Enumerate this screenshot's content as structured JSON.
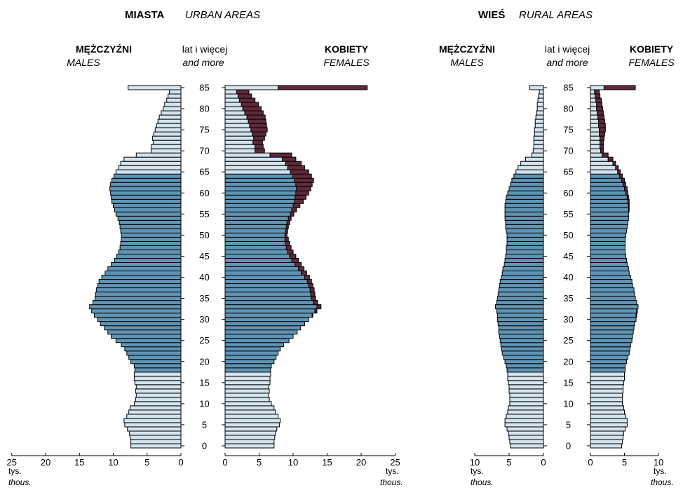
{
  "colors": {
    "working_age": "#5f94b4",
    "non_working_age": "#d3e4ef",
    "female_surplus": "#5e2a3a",
    "outline": "#000000"
  },
  "urban": {
    "title_pl": "MIASTA",
    "title_en": "URBAN AREAS",
    "males_pl": "MĘŻCZYŹNI",
    "males_en": "MALES",
    "age_pl": "lat i więcej",
    "age_en": "and more",
    "females_pl": "KOBIETY",
    "females_en": "FEMALES",
    "unit_pl": "tys.",
    "unit_en": "thous."
  },
  "rural": {
    "title_pl": "WIEŚ",
    "title_en": "RURAL AREAS",
    "males_pl": "MĘŻCZYŹNI",
    "males_en": "MALES",
    "age_pl": "lat i więcej",
    "age_en": "and more",
    "females_pl": "KOBIETY",
    "females_en": "FEMALES",
    "unit_pl": "tys.",
    "unit_en": "thous."
  },
  "chart_data": [
    {
      "type": "bar",
      "subtype": "population-pyramid",
      "title": "MIASTA URBAN AREAS",
      "age_ticks": [
        "0",
        "5",
        "10",
        "15",
        "20",
        "25",
        "30",
        "35",
        "40",
        "45",
        "50",
        "55",
        "60",
        "65",
        "70",
        "75",
        "80",
        "85"
      ],
      "male_ticks": [
        "25",
        "20",
        "15",
        "10",
        "5",
        "0"
      ],
      "female_ticks": [
        "0",
        "5",
        "10",
        "15",
        "20",
        "25"
      ],
      "xlim": [
        0,
        25
      ],
      "ages": [
        0,
        1,
        2,
        3,
        4,
        5,
        6,
        7,
        8,
        9,
        10,
        11,
        12,
        13,
        14,
        15,
        16,
        17,
        18,
        19,
        20,
        21,
        22,
        23,
        24,
        25,
        26,
        27,
        28,
        29,
        30,
        31,
        32,
        33,
        34,
        35,
        36,
        37,
        38,
        39,
        40,
        41,
        42,
        43,
        44,
        45,
        46,
        47,
        48,
        49,
        50,
        51,
        52,
        53,
        54,
        55,
        56,
        57,
        58,
        59,
        60,
        61,
        62,
        63,
        64,
        65,
        66,
        67,
        68,
        69,
        70,
        71,
        72,
        73,
        74,
        75,
        76,
        77,
        78,
        79,
        80,
        81,
        82,
        83,
        84,
        85
      ],
      "male": [
        7.4,
        7.4,
        7.5,
        7.6,
        7.9,
        8.3,
        8.4,
        8.0,
        7.7,
        7.5,
        6.9,
        6.7,
        6.6,
        6.7,
        6.6,
        6.8,
        6.9,
        6.9,
        6.8,
        6.9,
        7.4,
        7.7,
        8.0,
        8.3,
        8.8,
        9.6,
        10.3,
        10.8,
        11.3,
        11.9,
        12.3,
        12.8,
        13.2,
        13.5,
        13.0,
        12.7,
        12.6,
        12.5,
        12.3,
        12.1,
        11.7,
        11.2,
        10.8,
        10.3,
        9.8,
        9.5,
        9.2,
        9.0,
        8.9,
        8.8,
        8.8,
        8.9,
        9.0,
        9.1,
        9.3,
        9.6,
        9.8,
        10.0,
        10.2,
        10.3,
        10.4,
        10.5,
        10.4,
        10.2,
        9.9,
        9.6,
        9.2,
        8.9,
        8.4,
        6.6,
        4.4,
        4.4,
        4.1,
        4.2,
        4.0,
        3.8,
        3.6,
        3.4,
        3.2,
        2.9,
        2.6,
        2.4,
        2.1,
        1.9,
        1.7,
        7.8
      ],
      "female": [
        7.2,
        7.2,
        7.3,
        7.4,
        7.6,
        8.0,
        8.1,
        7.8,
        7.4,
        7.2,
        6.8,
        6.5,
        6.4,
        6.5,
        6.4,
        6.6,
        6.6,
        6.7,
        6.7,
        6.8,
        7.2,
        7.5,
        7.8,
        8.1,
        8.6,
        9.4,
        10.0,
        10.6,
        11.1,
        11.7,
        12.3,
        12.9,
        13.5,
        14.1,
        13.6,
        13.3,
        13.2,
        13.1,
        12.9,
        12.7,
        12.4,
        12.0,
        11.6,
        11.2,
        10.8,
        10.4,
        10.0,
        9.7,
        9.5,
        9.3,
        9.1,
        9.2,
        9.3,
        9.5,
        9.7,
        10.1,
        10.5,
        11.0,
        11.5,
        11.9,
        12.3,
        12.6,
        12.8,
        13.0,
        12.7,
        12.3,
        11.7,
        11.2,
        10.4,
        9.8,
        5.8,
        5.6,
        5.5,
        5.8,
        6.0,
        6.2,
        6.1,
        6.0,
        5.9,
        5.6,
        5.3,
        4.9,
        4.4,
        3.9,
        3.5,
        20.9
      ]
    },
    {
      "type": "bar",
      "subtype": "population-pyramid",
      "title": "WIEŚ RURAL AREAS",
      "age_ticks": [
        "0",
        "5",
        "10",
        "15",
        "20",
        "25",
        "30",
        "35",
        "40",
        "45",
        "50",
        "55",
        "60",
        "65",
        "70",
        "75",
        "80",
        "85"
      ],
      "male_ticks": [
        "10",
        "5",
        "0"
      ],
      "female_ticks": [
        "0",
        "5",
        "10"
      ],
      "xlim": [
        0,
        10
      ],
      "ages": [
        0,
        1,
        2,
        3,
        4,
        5,
        6,
        7,
        8,
        9,
        10,
        11,
        12,
        13,
        14,
        15,
        16,
        17,
        18,
        19,
        20,
        21,
        22,
        23,
        24,
        25,
        26,
        27,
        28,
        29,
        30,
        31,
        32,
        33,
        34,
        35,
        36,
        37,
        38,
        39,
        40,
        41,
        42,
        43,
        44,
        45,
        46,
        47,
        48,
        49,
        50,
        51,
        52,
        53,
        54,
        55,
        56,
        57,
        58,
        59,
        60,
        61,
        62,
        63,
        64,
        65,
        66,
        67,
        68,
        69,
        70,
        71,
        72,
        73,
        74,
        75,
        76,
        77,
        78,
        79,
        80,
        81,
        82,
        83,
        84,
        85
      ],
      "male": [
        4.8,
        4.9,
        5.0,
        5.1,
        5.3,
        5.6,
        5.6,
        5.4,
        5.2,
        5.1,
        4.9,
        4.9,
        4.9,
        5.0,
        5.0,
        5.1,
        5.2,
        5.2,
        5.3,
        5.4,
        5.6,
        5.8,
        6.0,
        6.1,
        6.2,
        6.3,
        6.4,
        6.5,
        6.5,
        6.6,
        6.7,
        6.7,
        6.8,
        7.0,
        6.8,
        6.7,
        6.6,
        6.5,
        6.4,
        6.3,
        6.1,
        6.0,
        5.9,
        5.7,
        5.6,
        5.5,
        5.4,
        5.4,
        5.3,
        5.3,
        5.3,
        5.4,
        5.5,
        5.5,
        5.6,
        5.6,
        5.6,
        5.6,
        5.5,
        5.4,
        5.2,
        5.0,
        4.8,
        4.6,
        4.3,
        4.0,
        3.7,
        3.3,
        2.6,
        1.7,
        1.5,
        1.4,
        1.4,
        1.4,
        1.3,
        1.3,
        1.2,
        1.2,
        1.1,
        1.0,
        0.9,
        0.9,
        0.8,
        0.7,
        0.6,
        2.0
      ],
      "female": [
        4.6,
        4.7,
        4.8,
        4.9,
        5.1,
        5.4,
        5.4,
        5.2,
        5.0,
        4.9,
        4.7,
        4.7,
        4.7,
        4.8,
        4.8,
        4.9,
        5.0,
        5.0,
        5.1,
        5.1,
        5.3,
        5.5,
        5.7,
        5.8,
        5.9,
        6.1,
        6.2,
        6.3,
        6.4,
        6.5,
        6.7,
        6.8,
        6.9,
        7.0,
        6.8,
        6.6,
        6.5,
        6.4,
        6.2,
        6.1,
        5.9,
        5.7,
        5.6,
        5.4,
        5.3,
        5.2,
        5.1,
        5.1,
        5.1,
        5.1,
        5.2,
        5.3,
        5.4,
        5.5,
        5.6,
        5.6,
        5.7,
        5.7,
        5.7,
        5.6,
        5.5,
        5.4,
        5.2,
        5.0,
        4.7,
        4.4,
        4.1,
        3.7,
        3.3,
        2.6,
        1.9,
        1.9,
        1.9,
        2.0,
        2.1,
        2.2,
        2.2,
        2.1,
        2.0,
        1.9,
        1.8,
        1.7,
        1.6,
        1.4,
        1.3,
        6.6
      ]
    }
  ]
}
